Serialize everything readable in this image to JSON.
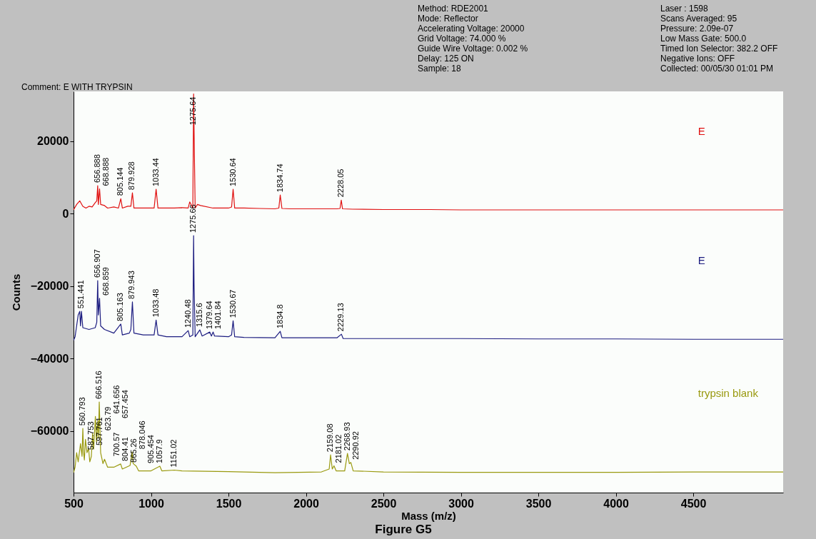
{
  "chart_data": {
    "type": "line",
    "xlabel": "Mass (m/z)",
    "ylabel": "Counts",
    "xlim": [
      500,
      5080
    ],
    "ylim": [
      -77000,
      33700
    ],
    "xticks": [
      500,
      1000,
      1500,
      2000,
      2500,
      3000,
      3500,
      4000,
      4500
    ],
    "yticks": [
      -60000,
      -40000,
      -20000,
      0,
      20000
    ],
    "grid": false,
    "legend": false,
    "marker": "none",
    "line_style": "solid",
    "series": [
      {
        "name": "E",
        "color": "#e01010",
        "x": [
          500,
          520,
          540,
          560,
          580,
          600,
          620,
          640,
          650,
          656,
          660,
          668,
          675,
          700,
          720,
          760,
          790,
          805,
          815,
          850,
          870,
          880,
          890,
          930,
          990,
          1020,
          1033,
          1045,
          1100,
          1150,
          1200,
          1240,
          1250,
          1270,
          1275,
          1280,
          1285,
          1300,
          1320,
          1400,
          1450,
          1500,
          1520,
          1530,
          1540,
          1600,
          1700,
          1800,
          1825,
          1834,
          1845,
          1900,
          2000,
          2100,
          2200,
          2220,
          2228,
          2236,
          2300,
          2500,
          2800,
          3000,
          3500,
          4000,
          4500,
          5000,
          5080
        ],
        "values": [
          1000,
          2500,
          3500,
          2000,
          1500,
          2000,
          1800,
          3000,
          3500,
          7700,
          2500,
          6800,
          2500,
          2200,
          1500,
          1800,
          1500,
          4100,
          1500,
          2000,
          2000,
          5700,
          1500,
          1500,
          1500,
          1500,
          6700,
          1500,
          1500,
          1500,
          1600,
          1500,
          3200,
          1500,
          33000,
          16000,
          1500,
          2500,
          2200,
          1500,
          1500,
          1500,
          1800,
          6700,
          1500,
          1500,
          1400,
          1300,
          1500,
          5100,
          1400,
          1300,
          1300,
          1300,
          1300,
          1400,
          3700,
          1300,
          1200,
          1100,
          1100,
          1000,
          1000,
          1000,
          1000,
          1000,
          1000
        ]
      },
      {
        "name": "E",
        "color": "#1c1c80",
        "x": [
          500,
          510,
          530,
          540,
          545,
          551,
          560,
          600,
          640,
          650,
          656,
          660,
          668,
          675,
          700,
          760,
          805,
          815,
          860,
          870,
          880,
          890,
          950,
          1020,
          1033,
          1045,
          1100,
          1200,
          1240,
          1250,
          1270,
          1275,
          1278,
          1285,
          1315,
          1330,
          1379,
          1390,
          1401,
          1410,
          1500,
          1520,
          1530,
          1540,
          1600,
          1800,
          1834,
          1845,
          2000,
          2200,
          2229,
          2240,
          2500,
          3000,
          3500,
          4000,
          4500,
          5000,
          5080
        ],
        "values": [
          -35000,
          -34000,
          -28000,
          -27000,
          -31000,
          -27000,
          -31500,
          -32000,
          -31500,
          -30000,
          -18500,
          -28000,
          -23400,
          -31000,
          -32000,
          -33000,
          -30500,
          -33500,
          -33000,
          -32000,
          -24400,
          -33000,
          -33500,
          -33500,
          -29400,
          -33500,
          -34000,
          -34000,
          -32300,
          -34000,
          -33500,
          -6100,
          -19900,
          -34000,
          -32100,
          -33800,
          -32700,
          -33800,
          -32700,
          -33800,
          -34000,
          -33500,
          -29600,
          -34000,
          -34200,
          -34300,
          -32500,
          -34300,
          -34300,
          -34300,
          -33300,
          -34500,
          -34500,
          -34500,
          -34600,
          -34600,
          -34700,
          -34700,
          -34700
        ]
      },
      {
        "name": "trypsin blank",
        "color": "#9a9a10",
        "x": [
          500,
          510,
          520,
          530,
          545,
          555,
          560,
          565,
          570,
          577,
          587,
          597,
          605,
          615,
          623,
          630,
          641,
          648,
          657,
          661,
          666,
          675,
          690,
          700,
          720,
          760,
          804,
          815,
          865,
          878,
          885,
          905,
          920,
          1000,
          1057,
          1070,
          1151,
          1200,
          1500,
          1800,
          2100,
          2150,
          2159,
          2170,
          2181,
          2195,
          2250,
          2268,
          2280,
          2290,
          2305,
          2500,
          3000,
          3500,
          4000,
          4500,
          5000,
          5080
        ],
        "values": [
          -71500,
          -70000,
          -66000,
          -68500,
          -63500,
          -67000,
          -59300,
          -66000,
          -68000,
          -62300,
          -66000,
          -64800,
          -68500,
          -67000,
          -60700,
          -65000,
          -56000,
          -63000,
          -57300,
          -62000,
          -52000,
          -66000,
          -69000,
          -67800,
          -70000,
          -70000,
          -69100,
          -70500,
          -69500,
          -65800,
          -69000,
          -69700,
          -71000,
          -71000,
          -69700,
          -71000,
          -70800,
          -71000,
          -71200,
          -71500,
          -71300,
          -70500,
          -66600,
          -70500,
          -69600,
          -71000,
          -71000,
          -66200,
          -69000,
          -68700,
          -71000,
          -71300,
          -71400,
          -71400,
          -71400,
          -71300,
          -71300,
          -71300
        ]
      }
    ],
    "annotations": [
      "Comment: E WITH TRYPSIN",
      "Method: RDE2001",
      "Mode: Reflector",
      "Accelerating Voltage: 20000",
      "Grid Voltage: 74.000 %",
      "Guide Wire Voltage: 0.002 %",
      "Delay: 125 ON",
      "Sample: 18",
      "Laser : 1598",
      "Scans Averaged: 95",
      "Pressure: 2.09e-07",
      "Low Mass Gate: 500.0",
      "Timed Ion Selector: 382.2 OFF",
      "Negative Ions: OFF",
      "Collected: 00/05/30 01:01 PM",
      "Figure G5",
      {
        "text": "656.888",
        "x": 656,
        "y": 7700
      },
      {
        "text": "668.888",
        "x": 668,
        "y": 6800
      },
      {
        "text": "805.144",
        "x": 805,
        "y": 4100
      },
      {
        "text": "879.928",
        "x": 880,
        "y": 5700
      },
      {
        "text": "1033.44",
        "x": 1033,
        "y": 6700
      },
      {
        "text": "1275.64",
        "x": 1275,
        "y": 33000
      },
      {
        "text": "1530.64",
        "x": 1530,
        "y": 6700
      },
      {
        "text": "1834.74",
        "x": 1834,
        "y": 5100
      },
      {
        "text": "2228.05",
        "x": 2228,
        "y": 3700
      },
      {
        "text": "551.441",
        "x": 551,
        "y": -27000
      },
      {
        "text": "656.907",
        "x": 656,
        "y": -18500
      },
      {
        "text": "668.859",
        "x": 668,
        "y": -23400
      },
      {
        "text": "805.163",
        "x": 805,
        "y": -30500
      },
      {
        "text": "879.943",
        "x": 880,
        "y": -24400
      },
      {
        "text": "1033.48",
        "x": 1033,
        "y": -29400
      },
      {
        "text": "1240.48",
        "x": 1240,
        "y": -32300
      },
      {
        "text": "1275.66",
        "x": 1275,
        "y": -6100
      },
      {
        "text": "1315.6",
        "x": 1315,
        "y": -32100
      },
      {
        "text": "1379.64",
        "x": 1379,
        "y": -32700
      },
      {
        "text": "1401.84",
        "x": 1401,
        "y": -32700
      },
      {
        "text": "1530.67",
        "x": 1530,
        "y": -29600
      },
      {
        "text": "1834.8",
        "x": 1834,
        "y": -32500
      },
      {
        "text": "2229.13",
        "x": 2229,
        "y": -33300
      },
      {
        "text": "560.793",
        "x": 560,
        "y": -59300
      },
      {
        "text": "587.753",
        "x": 587,
        "y": -66000
      },
      {
        "text": "597.761",
        "x": 597,
        "y": -64800
      },
      {
        "text": "623.79",
        "x": 623,
        "y": -60700
      },
      {
        "text": "641.656",
        "x": 641,
        "y": -56000
      },
      {
        "text": "657.454",
        "x": 657,
        "y": -57300
      },
      {
        "text": "666.516",
        "x": 666,
        "y": -52000
      },
      {
        "text": "700.57",
        "x": 700,
        "y": -67800
      },
      {
        "text": "804.41",
        "x": 804,
        "y": -69100
      },
      {
        "text": "865.26",
        "x": 865,
        "y": -69500
      },
      {
        "text": "878.046",
        "x": 878,
        "y": -65800
      },
      {
        "text": "905.454",
        "x": 905,
        "y": -69700
      },
      {
        "text": "1057.9",
        "x": 1057,
        "y": -69700
      },
      {
        "text": "1151.02",
        "x": 1151,
        "y": -70800
      },
      {
        "text": "2159.08",
        "x": 2159,
        "y": -66600
      },
      {
        "text": "2181.02",
        "x": 2181,
        "y": -69600
      },
      {
        "text": "2268.93",
        "x": 2268,
        "y": -66200
      },
      {
        "text": "2290.92",
        "x": 2290,
        "y": -68700
      }
    ]
  }
}
